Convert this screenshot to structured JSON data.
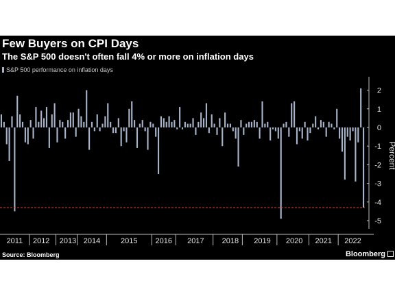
{
  "title": "Few Buyers on CPI Days",
  "subtitle": "The S&P 500 doesn't often fall 4% or more on inflation days",
  "source": "Source: Bloomberg",
  "brand": "Bloomberg",
  "chart_data": {
    "type": "bar",
    "series": [
      {
        "name": "S&P 500 performance on inflation days",
        "color": "#a7b3c9",
        "values": [
          0.7,
          0.3,
          -0.9,
          -1.8,
          0.6,
          -4.5,
          1.7,
          0.7,
          0.3,
          -0.8,
          -0.9,
          0.4,
          -0.6,
          1.1,
          0.3,
          0.9,
          0.5,
          1.1,
          -1.1,
          0.7,
          1.3,
          -0.8,
          0.4,
          0.3,
          -0.6,
          0.4,
          0.8,
          0.8,
          -0.5,
          1.0,
          0.6,
          0.3,
          2.0,
          -1.2,
          0.3,
          -0.2,
          0.7,
          -0.2,
          0.2,
          0.6,
          1.3,
          0.3,
          -0.3,
          -0.3,
          0.5,
          -1.0,
          -0.2,
          -0.8,
          1.0,
          1.4,
          0.4,
          -1.1,
          0.2,
          0.4,
          -0.2,
          -1.2,
          0.3,
          0.2,
          -0.5,
          -2.5,
          0.6,
          0.5,
          0.3,
          0.6,
          0.3,
          0.4,
          -0.1,
          1.1,
          -0.1,
          0.3,
          0.2,
          0.2,
          0.5,
          -0.4,
          0.3,
          0.8,
          0.5,
          1.3,
          -0.3,
          0.7,
          0.2,
          -0.4,
          0.5,
          -1.0,
          0.8,
          0.2,
          0.2,
          -0.2,
          -0.6,
          -2.1,
          0.4,
          -0.4,
          0.2,
          0.3,
          0.3,
          0.4,
          0.3,
          -0.6,
          1.4,
          0.2,
          0.3,
          -0.7,
          -0.1,
          -0.2,
          -0.6,
          -4.9,
          0.2,
          0.3,
          -0.5,
          1.3,
          1.4,
          -0.9,
          -0.2,
          -0.6,
          0.3,
          -0.7,
          -0.3,
          0.2,
          0.6,
          -0.1,
          0.4,
          0.3,
          -0.5,
          0.3,
          0.2,
          -0.1,
          1.0,
          -0.6,
          -1.3,
          -2.8,
          -0.5,
          -0.7,
          -0.2,
          -2.9,
          -0.8,
          2.1,
          -4.3
        ]
      }
    ],
    "x_labels": [
      "2011",
      "2012",
      "2013",
      "2014",
      "2015",
      "2016",
      "2017",
      "2018",
      "2019",
      "2020",
      "2021",
      "2022"
    ],
    "x_label_bar_index": [
      5,
      15,
      25,
      34,
      48,
      61,
      73,
      86,
      98,
      110,
      121,
      132
    ],
    "x_separator_bar_index": [
      11,
      21,
      29,
      40,
      57,
      66,
      80,
      91,
      104,
      116,
      127
    ],
    "ylabel": "Percent",
    "ylim": [
      -5.6,
      2.7
    ],
    "yticks": [
      -5,
      -4,
      -3,
      -2,
      -1,
      0,
      1,
      2
    ],
    "ytick_labels": [
      "-5",
      "-4",
      "-3",
      "-2",
      "-1",
      "0",
      "1",
      "2"
    ],
    "reference_line": {
      "value": -4.3,
      "color": "#e0403a",
      "style": "dashed"
    },
    "grid": false,
    "legend_position": "top-left",
    "colors": {
      "background": "#000000",
      "bar": "#a7b3c9",
      "text": "#ffffff"
    }
  }
}
